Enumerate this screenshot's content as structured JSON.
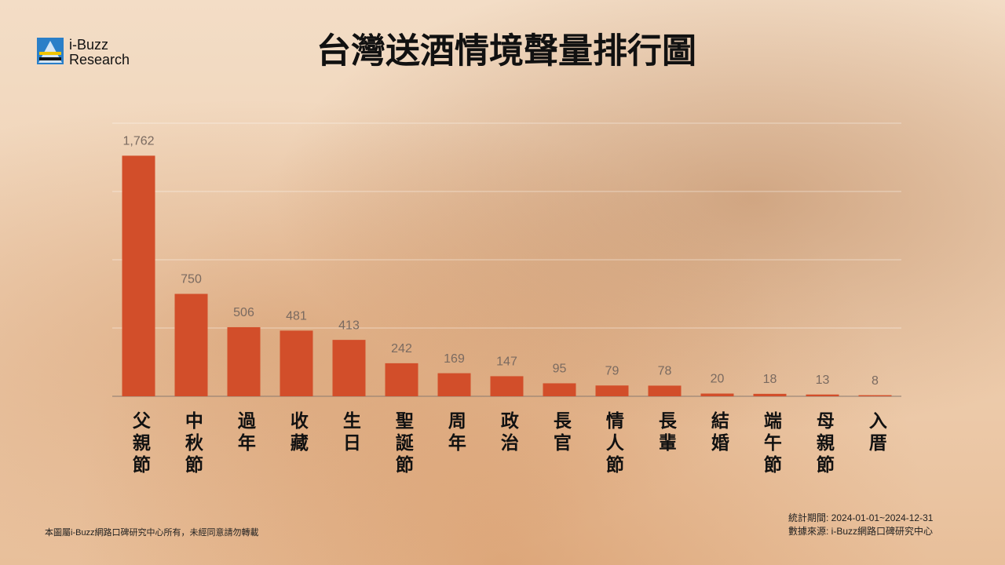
{
  "logo": {
    "line1": "i-Buzz",
    "line2": "Research"
  },
  "footer": {
    "copyright": "本圖屬i-Buzz網路口碑研究中心所有，未經同意請勿轉載",
    "period": "統計期間:  2024-01-01~2024-12-31",
    "source": "數據來源: i-Buzz網路口碑研究中心"
  },
  "chart_data": {
    "type": "bar",
    "title": "台灣送酒情境聲量排行圖",
    "categories": [
      "父親節",
      "中秋節",
      "過年",
      "收藏",
      "生日",
      "聖誕節",
      "周年",
      "政治",
      "長官",
      "情人節",
      "長輩",
      "結婚",
      "端午節",
      "母親節",
      "入厝"
    ],
    "values": [
      1762,
      750,
      506,
      481,
      413,
      242,
      169,
      147,
      95,
      79,
      78,
      20,
      18,
      13,
      8
    ],
    "value_labels": [
      "1,762",
      "750",
      "506",
      "481",
      "413",
      "242",
      "169",
      "147",
      "95",
      "79",
      "78",
      "20",
      "18",
      "13",
      "8"
    ],
    "color": "#d24e2a",
    "ylim": [
      0,
      2000
    ],
    "yticks": [
      0,
      500,
      1000,
      1500,
      2000
    ],
    "grid": true
  }
}
